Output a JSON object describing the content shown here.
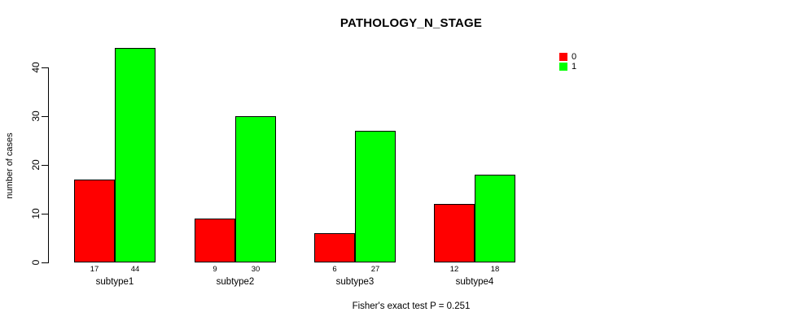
{
  "chart_data": {
    "type": "bar",
    "title": "PATHOLOGY_N_STAGE",
    "xlabel": "",
    "ylabel": "number of cases",
    "categories": [
      "subtype1",
      "subtype2",
      "subtype3",
      "subtype4"
    ],
    "series": [
      {
        "name": "0",
        "color": "#FF0000",
        "values": [
          17,
          9,
          6,
          12
        ]
      },
      {
        "name": "1",
        "color": "#00FF00",
        "values": [
          44,
          30,
          27,
          18
        ]
      }
    ],
    "yticks": [
      0,
      10,
      20,
      30,
      40
    ],
    "ylim": [
      0,
      44
    ],
    "grid": false,
    "legend_position": "top-right-outside",
    "bar_value_labels": true,
    "footnote": "Fisher's exact test P = 0.251"
  }
}
